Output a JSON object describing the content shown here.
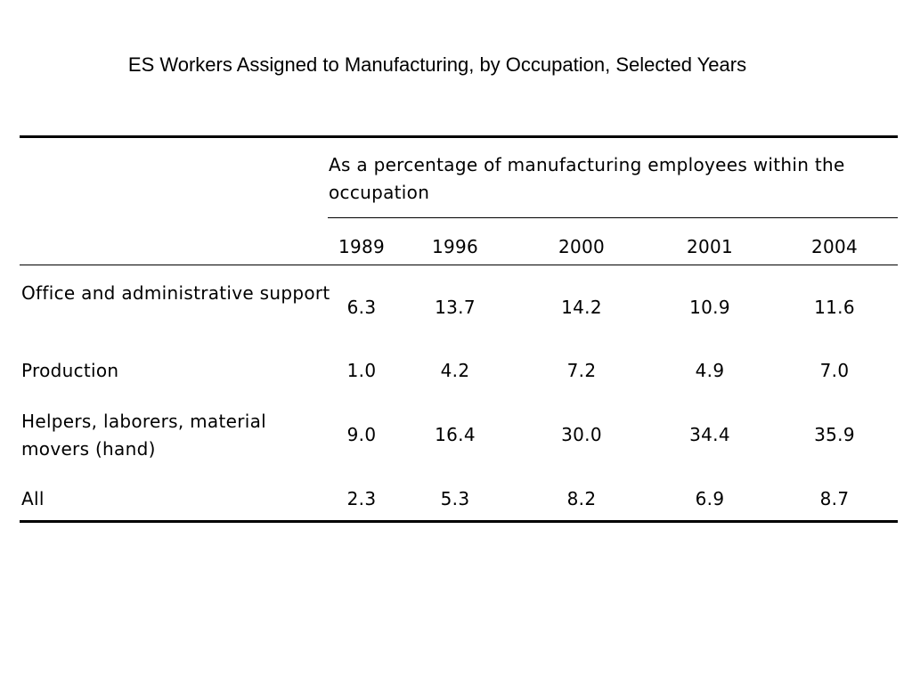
{
  "title": "ES Workers Assigned to Manufacturing, by Occupation, Selected Years",
  "table": {
    "group_header": "As a percentage of manufacturing employees within the occupation",
    "years": [
      "1989",
      "1996",
      "2000",
      "2001",
      "2004"
    ],
    "rows": [
      {
        "label": "Office and administrative support",
        "values": [
          "6.3",
          "13.7",
          "14.2",
          "10.9",
          "11.6"
        ]
      },
      {
        "label": "Production",
        "values": [
          "1.0",
          "4.2",
          "7.2",
          "4.9",
          "7.0"
        ]
      },
      {
        "label": "Helpers, laborers, material movers (hand)",
        "values": [
          "9.0",
          "16.4",
          "30.0",
          "34.4",
          "35.9"
        ]
      },
      {
        "label": "All",
        "values": [
          "2.3",
          "5.3",
          "8.2",
          "6.9",
          "8.7"
        ]
      }
    ]
  }
}
